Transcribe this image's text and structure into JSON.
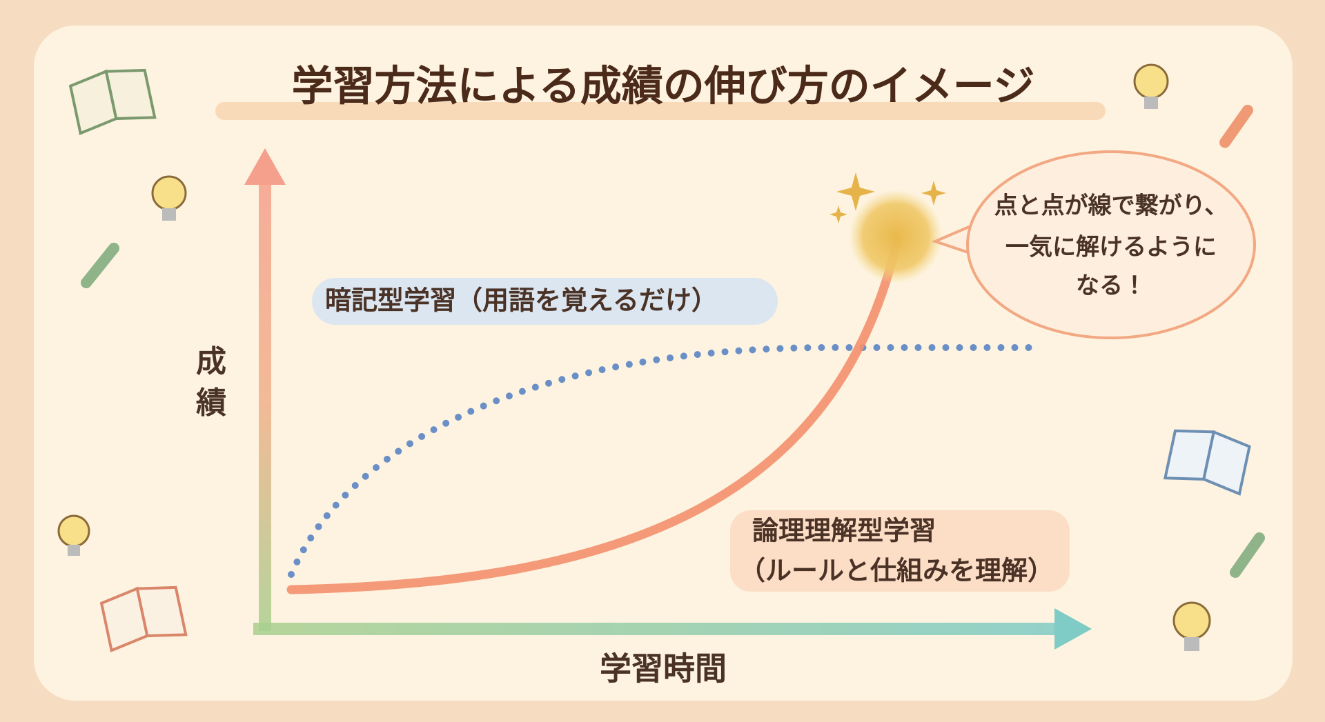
{
  "header": {
    "title": "学習方法による成績の伸び方のイメージ"
  },
  "axes": {
    "y_label": "成績",
    "x_label": "学習時間"
  },
  "curves": [
    {
      "label": "暗記型学習（用語を覚えるだけ）"
    },
    {
      "label_lines": [
        "論理理解型学習",
        "（ルールと仕組みを理解）"
      ]
    }
  ],
  "callout": {
    "lines": [
      "点と点が線で繋がり、",
      "一気に解けるように",
      "なる！"
    ]
  }
}
